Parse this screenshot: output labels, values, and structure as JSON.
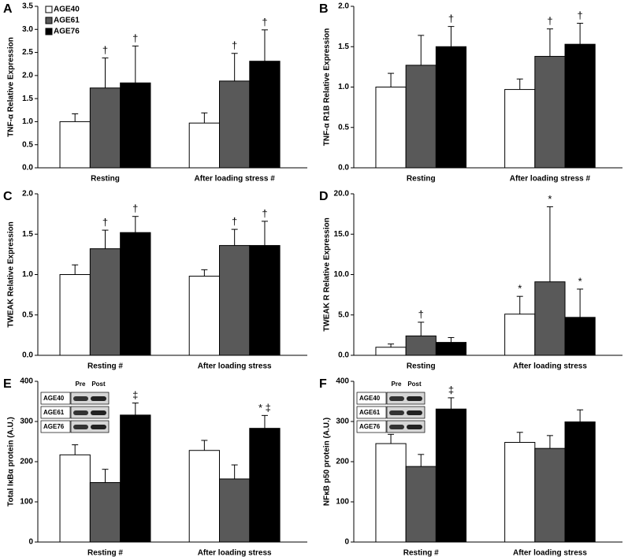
{
  "chart_data": [
    {
      "type": "bar",
      "panel": "A",
      "ylabel": "TNF-α Relative Expression",
      "categories": [
        "Resting",
        "After loading stress #"
      ],
      "ylim": [
        0,
        3.5
      ],
      "yticks": [
        {
          "value": 0,
          "label": "0.0"
        },
        0.5,
        {
          "value": 1,
          "label": "1.0"
        },
        1.5,
        {
          "value": 2,
          "label": "2.0"
        },
        2.5,
        {
          "value": 3,
          "label": "3.0"
        },
        3.5
      ],
      "legend": "top-left",
      "series": [
        {
          "name": "AGE40",
          "color": "#ffffff",
          "values": [
            1.0,
            0.97
          ],
          "errors": [
            0.17,
            0.22
          ],
          "annotations": [
            null,
            null
          ]
        },
        {
          "name": "AGE61",
          "color": "#595959",
          "values": [
            1.73,
            1.88
          ],
          "errors": [
            0.65,
            0.6
          ],
          "annotations": [
            "†",
            "†"
          ]
        },
        {
          "name": "AGE76",
          "color": "#000000",
          "values": [
            1.84,
            2.31
          ],
          "errors": [
            0.8,
            0.68
          ],
          "annotations": [
            "†",
            "†"
          ]
        }
      ]
    },
    {
      "type": "bar",
      "panel": "B",
      "ylabel": "TNF-α R1B Relative Expression",
      "categories": [
        "Resting",
        "After loading stress #"
      ],
      "ylim": [
        0,
        2
      ],
      "yticks": [
        {
          "value": 0,
          "label": "0.0"
        },
        0.5,
        {
          "value": 1,
          "label": "1.0"
        },
        1.5,
        {
          "value": 2,
          "label": "2.0"
        }
      ],
      "series": [
        {
          "color": "#ffffff",
          "values": [
            1.0,
            0.97
          ],
          "errors": [
            0.17,
            0.13
          ],
          "annotations": [
            null,
            null
          ]
        },
        {
          "color": "#595959",
          "values": [
            1.27,
            1.38
          ],
          "errors": [
            0.37,
            0.34
          ],
          "annotations": [
            null,
            "†"
          ]
        },
        {
          "color": "#000000",
          "values": [
            1.5,
            1.53
          ],
          "errors": [
            0.25,
            0.26
          ],
          "annotations": [
            "†",
            "†"
          ]
        }
      ]
    },
    {
      "type": "bar",
      "panel": "C",
      "ylabel": "TWEAK Relative Expression",
      "categories": [
        "Resting #",
        "After loading stress"
      ],
      "ylim": [
        0,
        2
      ],
      "yticks": [
        {
          "value": 0,
          "label": "0.0"
        },
        0.5,
        {
          "value": 1,
          "label": "1.0"
        },
        1.5,
        {
          "value": 2,
          "label": "2.0"
        }
      ],
      "series": [
        {
          "color": "#ffffff",
          "values": [
            1.0,
            0.98
          ],
          "errors": [
            0.12,
            0.08
          ],
          "annotations": [
            null,
            null
          ]
        },
        {
          "color": "#595959",
          "values": [
            1.32,
            1.36
          ],
          "errors": [
            0.23,
            0.2
          ],
          "annotations": [
            "†",
            "†"
          ]
        },
        {
          "color": "#000000",
          "values": [
            1.52,
            1.36
          ],
          "errors": [
            0.2,
            0.3
          ],
          "annotations": [
            "†",
            "†"
          ]
        }
      ]
    },
    {
      "type": "bar",
      "panel": "D",
      "ylabel": "TWEAK R Relative Expression",
      "categories": [
        "Resting",
        "After loading stress"
      ],
      "ylim": [
        0,
        20
      ],
      "yticks": [
        {
          "value": 0,
          "label": "0.0"
        },
        {
          "value": 5,
          "label": "5.0"
        },
        {
          "value": 10,
          "label": "10.0"
        },
        {
          "value": 15,
          "label": "15.0"
        },
        {
          "value": 20,
          "label": "20.0"
        }
      ],
      "series": [
        {
          "color": "#ffffff",
          "values": [
            1.0,
            5.1
          ],
          "errors": [
            0.4,
            2.2
          ],
          "annotations": [
            null,
            "*"
          ]
        },
        {
          "color": "#595959",
          "values": [
            2.4,
            9.1
          ],
          "errors": [
            1.7,
            9.3
          ],
          "annotations": [
            "†",
            "*"
          ]
        },
        {
          "color": "#000000",
          "values": [
            1.6,
            4.7
          ],
          "errors": [
            0.6,
            3.5
          ],
          "annotations": [
            null,
            "*"
          ]
        }
      ]
    },
    {
      "type": "bar",
      "panel": "E",
      "ylabel": "Total IκBα protein (A.U.)",
      "categories": [
        "Resting #",
        "After loading stress"
      ],
      "ylim": [
        0,
        400
      ],
      "yticks": [
        0,
        100,
        200,
        300,
        400
      ],
      "blot": {
        "columns": [
          "Pre",
          "Post"
        ],
        "rows": [
          "AGE40",
          "AGE61",
          "AGE76"
        ]
      },
      "series": [
        {
          "color": "#ffffff",
          "values": [
            217,
            228
          ],
          "errors": [
            25,
            25
          ],
          "annotations": [
            null,
            null
          ]
        },
        {
          "color": "#595959",
          "values": [
            148,
            157
          ],
          "errors": [
            33,
            35
          ],
          "annotations": [
            null,
            null
          ]
        },
        {
          "color": "#000000",
          "values": [
            316,
            283
          ],
          "errors": [
            30,
            32
          ],
          "annotations": [
            "‡",
            "* ‡"
          ]
        }
      ]
    },
    {
      "type": "bar",
      "panel": "F",
      "ylabel": "NFκB p50 protein (A.U.)",
      "categories": [
        "Resting  #",
        "After loading stress"
      ],
      "ylim": [
        0,
        400
      ],
      "yticks": [
        0,
        100,
        200,
        300,
        400
      ],
      "blot": {
        "columns": [
          "Pre",
          "Post"
        ],
        "rows": [
          "AGE40",
          "AGE61",
          "AGE76"
        ]
      },
      "series": [
        {
          "color": "#ffffff",
          "values": [
            245,
            248
          ],
          "errors": [
            23,
            25
          ],
          "annotations": [
            null,
            null
          ]
        },
        {
          "color": "#595959",
          "values": [
            188,
            233
          ],
          "errors": [
            30,
            32
          ],
          "annotations": [
            null,
            null
          ]
        },
        {
          "color": "#000000",
          "values": [
            331,
            299
          ],
          "errors": [
            28,
            30
          ],
          "annotations": [
            "‡",
            null
          ]
        }
      ]
    }
  ]
}
